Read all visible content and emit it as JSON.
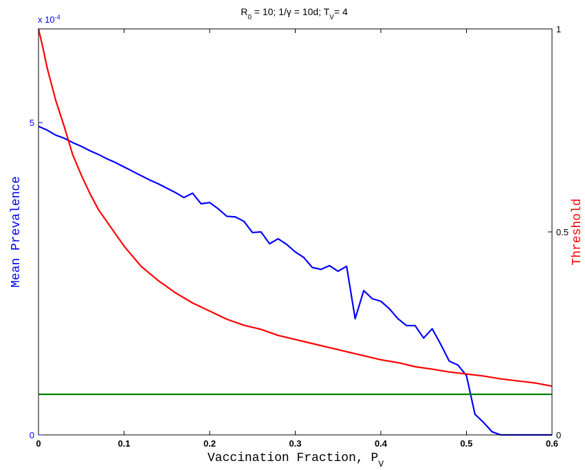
{
  "chart_data": {
    "type": "line",
    "title": {
      "parts": [
        {
          "text": "R",
          "sub": false
        },
        {
          "text": "0",
          "sub": true
        },
        {
          "text": " = 10; 1/γ = 10d; T",
          "sub": false
        },
        {
          "text": "V",
          "sub": true
        },
        {
          "text": "= 4",
          "sub": false
        }
      ]
    },
    "xlabel": {
      "text": "Vaccination Fraction, P",
      "sub": "V"
    },
    "ylabel_left": "Mean Prevalence",
    "ylabel_right": "Threshold",
    "left_scale_note": {
      "base": "x 10",
      "exp": "-4"
    },
    "xlim": [
      0,
      0.6
    ],
    "ylim_left": [
      0,
      6.5
    ],
    "ylim_right": [
      0,
      1
    ],
    "x_ticks": [
      0,
      0.1,
      0.2,
      0.3,
      0.4,
      0.5,
      0.6
    ],
    "x_tick_labels": [
      "0",
      "0.1",
      "0.2",
      "0.3",
      "0.4",
      "0.5",
      "0.6"
    ],
    "y_left_ticks": [
      0,
      5
    ],
    "y_left_tick_labels": [
      "0",
      "5"
    ],
    "y_right_ticks": [
      0,
      0.5,
      1
    ],
    "y_right_tick_labels": [
      "0",
      "0.5",
      "1"
    ],
    "grid": false,
    "colors": {
      "left_axis": "#0000ff",
      "right_axis": "#ff0000",
      "prevalence": "#0000ff",
      "threshold": "#ff0000",
      "level": "#008000",
      "axes": "#000000"
    },
    "series": [
      {
        "axis": "left",
        "color": "#0000ff",
        "x": [
          0,
          0.01,
          0.02,
          0.03,
          0.04,
          0.05,
          0.06,
          0.07,
          0.08,
          0.09,
          0.1,
          0.11,
          0.12,
          0.13,
          0.14,
          0.15,
          0.16,
          0.17,
          0.18,
          0.19,
          0.2,
          0.21,
          0.22,
          0.23,
          0.24,
          0.25,
          0.26,
          0.27,
          0.28,
          0.29,
          0.3,
          0.31,
          0.32,
          0.33,
          0.34,
          0.35,
          0.36,
          0.37,
          0.38,
          0.39,
          0.4,
          0.41,
          0.42,
          0.43,
          0.44,
          0.45,
          0.46,
          0.47,
          0.48,
          0.49,
          0.5,
          0.51,
          0.52,
          0.53,
          0.54,
          0.55,
          0.56,
          0.57,
          0.58,
          0.59,
          0.6
        ],
        "values": [
          4.94,
          4.88,
          4.8,
          4.75,
          4.68,
          4.62,
          4.55,
          4.49,
          4.42,
          4.36,
          4.29,
          4.22,
          4.15,
          4.08,
          4.02,
          3.95,
          3.88,
          3.8,
          3.87,
          3.7,
          3.72,
          3.62,
          3.5,
          3.49,
          3.42,
          3.24,
          3.25,
          3.06,
          3.14,
          3.05,
          2.93,
          2.84,
          2.68,
          2.65,
          2.71,
          2.62,
          2.7,
          1.86,
          2.31,
          2.18,
          2.14,
          2.02,
          1.86,
          1.75,
          1.75,
          1.55,
          1.7,
          1.45,
          1.18,
          1.12,
          0.95,
          0.33,
          0.2,
          0.05,
          0.0,
          0.0,
          0.0,
          0.0,
          0.0,
          0.0,
          0.0
        ]
      },
      {
        "axis": "right",
        "color": "#ff0000",
        "x": [
          0,
          0.005,
          0.01,
          0.015,
          0.02,
          0.03,
          0.04,
          0.05,
          0.06,
          0.07,
          0.08,
          0.09,
          0.1,
          0.11,
          0.12,
          0.14,
          0.16,
          0.18,
          0.2,
          0.22,
          0.24,
          0.26,
          0.28,
          0.3,
          0.32,
          0.34,
          0.36,
          0.38,
          0.4,
          0.42,
          0.44,
          0.46,
          0.48,
          0.5,
          0.52,
          0.54,
          0.56,
          0.58,
          0.6
        ],
        "values": [
          1.0,
          0.955,
          0.905,
          0.865,
          0.825,
          0.76,
          0.69,
          0.64,
          0.595,
          0.555,
          0.525,
          0.495,
          0.465,
          0.44,
          0.415,
          0.38,
          0.35,
          0.325,
          0.305,
          0.285,
          0.27,
          0.26,
          0.245,
          0.235,
          0.225,
          0.215,
          0.205,
          0.195,
          0.185,
          0.178,
          0.168,
          0.162,
          0.155,
          0.15,
          0.145,
          0.138,
          0.133,
          0.128,
          0.12
        ]
      },
      {
        "axis": "right",
        "color": "#008000",
        "x": [
          0,
          0.6
        ],
        "values": [
          0.1,
          0.1
        ]
      }
    ]
  }
}
